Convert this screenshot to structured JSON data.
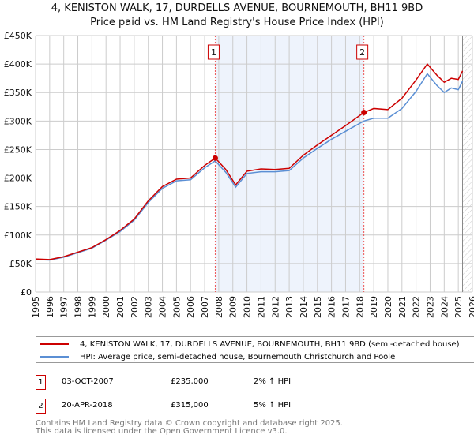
{
  "title": "4, KENISTON WALK, 17, DURDELLS AVENUE, BOURNEMOUTH, BH11 9BD",
  "subtitle": "Price paid vs. HM Land Registry's House Price Index (HPI)",
  "chart_data": {
    "type": "line",
    "ylim": [
      0,
      450000
    ],
    "xlim": [
      1995,
      2026
    ],
    "y_ticks": [
      "£0",
      "£50K",
      "£100K",
      "£150K",
      "£200K",
      "£250K",
      "£300K",
      "£350K",
      "£400K",
      "£450K"
    ],
    "x_ticks": [
      "1995",
      "1996",
      "1997",
      "1998",
      "1999",
      "2000",
      "2001",
      "2002",
      "2003",
      "2004",
      "2005",
      "2006",
      "2007",
      "2008",
      "2009",
      "2010",
      "2011",
      "2012",
      "2013",
      "2014",
      "2015",
      "2016",
      "2017",
      "2018",
      "2019",
      "2020",
      "2021",
      "2022",
      "2023",
      "2024",
      "2025",
      "2026"
    ],
    "grid": true,
    "shaded_range": [
      2007.75,
      2018.3
    ],
    "forecast_from": 2025.3,
    "series": [
      {
        "name": "4, KENISTON WALK, 17, DURDELLS AVENUE, BOURNEMOUTH, BH11 9BD (semi-detached house)",
        "color": "#cc0000",
        "x": [
          1995,
          1996,
          1997,
          1998,
          1999,
          2000,
          2001,
          2002,
          2003,
          2004,
          2005,
          2006,
          2007,
          2007.75,
          2008.5,
          2009.2,
          2010,
          2011,
          2012,
          2013,
          2014,
          2015,
          2016,
          2017,
          2018.3,
          2019,
          2020,
          2021,
          2022,
          2022.8,
          2023.5,
          2024,
          2024.5,
          2025,
          2025.3
        ],
        "y": [
          58000,
          57000,
          62000,
          70000,
          78000,
          92000,
          108000,
          128000,
          160000,
          185000,
          198000,
          200000,
          222000,
          235000,
          215000,
          188000,
          212000,
          216000,
          215000,
          217000,
          240000,
          258000,
          275000,
          292000,
          315000,
          322000,
          320000,
          340000,
          372000,
          400000,
          380000,
          368000,
          375000,
          373000,
          388000
        ]
      },
      {
        "name": "HPI: Average price, semi-detached house, Bournemouth Christchurch and Poole",
        "color": "#5b8fd4",
        "x": [
          1995,
          1996,
          1997,
          1998,
          1999,
          2000,
          2001,
          2002,
          2003,
          2004,
          2005,
          2006,
          2007,
          2007.75,
          2008.5,
          2009.2,
          2010,
          2011,
          2012,
          2013,
          2014,
          2015,
          2016,
          2017,
          2018.3,
          2019,
          2020,
          2021,
          2022,
          2022.8,
          2023.5,
          2024,
          2024.5,
          2025,
          2025.3
        ],
        "y": [
          57000,
          56000,
          61000,
          69000,
          77000,
          91000,
          106000,
          126000,
          157000,
          182000,
          195000,
          197000,
          218000,
          230000,
          210000,
          184000,
          208000,
          211000,
          211000,
          213000,
          235000,
          252000,
          268000,
          282000,
          300000,
          305000,
          305000,
          322000,
          352000,
          383000,
          362000,
          350000,
          358000,
          355000,
          370000
        ]
      }
    ],
    "markers": [
      {
        "label": "1",
        "x": 2007.75,
        "y": 235000
      },
      {
        "label": "2",
        "x": 2018.3,
        "y": 315000
      }
    ]
  },
  "legend": [
    {
      "label": "4, KENISTON WALK, 17, DURDELLS AVENUE, BOURNEMOUTH, BH11 9BD (semi-detached house)"
    },
    {
      "label": "HPI: Average price, semi-detached house, Bournemouth Christchurch and Poole"
    }
  ],
  "transactions": [
    {
      "num": "1",
      "date": "03-OCT-2007",
      "price": "£235,000",
      "hpi": "2% ↑ HPI"
    },
    {
      "num": "2",
      "date": "20-APR-2018",
      "price": "£315,000",
      "hpi": "5% ↑ HPI"
    }
  ],
  "footer": [
    "Contains HM Land Registry data © Crown copyright and database right 2025.",
    "This data is licensed under the Open Government Licence v3.0."
  ]
}
